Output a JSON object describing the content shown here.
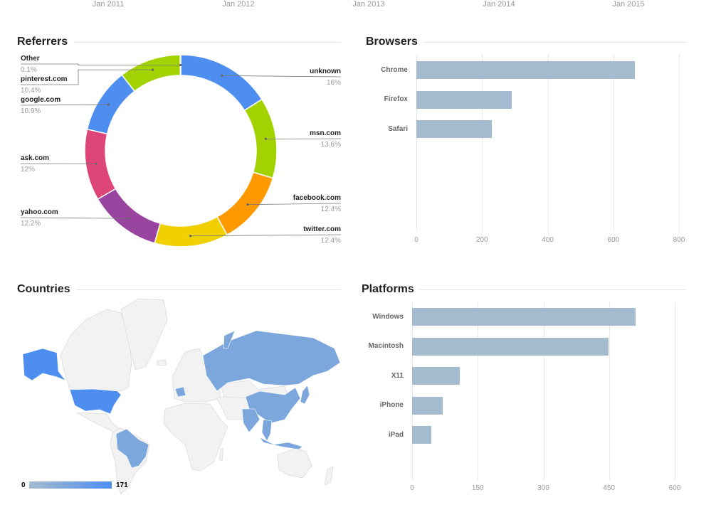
{
  "timeline_axis": {
    "ticks": [
      "Jan 2011",
      "Jan 2012",
      "Jan 2013",
      "Jan 2014",
      "Jan 2015"
    ]
  },
  "referrers": {
    "title": "Referrers",
    "chart_data": {
      "type": "pie",
      "donut": true,
      "slices": [
        {
          "label": "unknown",
          "value": 16,
          "pct_label": "16%",
          "color": "#4d8ef0"
        },
        {
          "label": "msn.com",
          "value": 13.6,
          "pct_label": "13.6%",
          "color": "#a2d200"
        },
        {
          "label": "facebook.com",
          "value": 12.4,
          "pct_label": "12.4%",
          "color": "#ff9900"
        },
        {
          "label": "twitter.com",
          "value": 12.4,
          "pct_label": "12.4%",
          "color": "#f0d000"
        },
        {
          "label": "yahoo.com",
          "value": 12.2,
          "pct_label": "12.2%",
          "color": "#99449e"
        },
        {
          "label": "ask.com",
          "value": 12,
          "pct_label": "12%",
          "color": "#dd4477"
        },
        {
          "label": "google.com",
          "value": 10.9,
          "pct_label": "10.9%",
          "color": "#4d8ef0"
        },
        {
          "label": "pinterest.com",
          "value": 10.4,
          "pct_label": "10.4%",
          "color": "#a2d200"
        },
        {
          "label": "Other",
          "value": 0.1,
          "pct_label": "0.1%",
          "color": "#999999"
        }
      ]
    }
  },
  "browsers": {
    "title": "Browsers",
    "chart_data": {
      "type": "bar",
      "orientation": "horizontal",
      "categories": [
        "Chrome",
        "Firefox",
        "Safari"
      ],
      "values": [
        666,
        291,
        230
      ],
      "xlim": [
        0,
        800
      ],
      "ticks": [
        "0",
        "200",
        "400",
        "600",
        "800"
      ],
      "grid": true,
      "color": "#a5bbd0"
    }
  },
  "countries": {
    "title": "Countries",
    "legend": {
      "min": "0",
      "max": "171",
      "color_min": "#a5bbd0",
      "color_max": "#4d8ef0"
    },
    "highlighted": [
      "United States",
      "Alaska",
      "Brazil",
      "Venezuela",
      "France",
      "Russia",
      "China",
      "India",
      "Thailand",
      "Indonesia",
      "Malaysia",
      "Philippines"
    ]
  },
  "platforms": {
    "title": "Platforms",
    "chart_data": {
      "type": "bar",
      "orientation": "horizontal",
      "categories": [
        "Windows",
        "Macintosh",
        "X11",
        "iPhone",
        "iPad"
      ],
      "values": [
        511,
        449,
        109,
        70,
        44
      ],
      "xlim": [
        0,
        600
      ],
      "ticks": [
        "0",
        "150",
        "300",
        "450",
        "600"
      ],
      "grid": true,
      "color": "#a5bbd0"
    }
  }
}
